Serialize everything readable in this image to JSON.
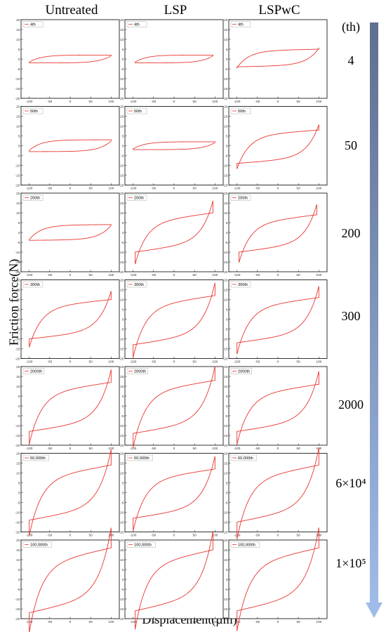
{
  "figure": {
    "columns": [
      "Untreated",
      "LSP",
      "LSPwC"
    ],
    "row_labels": [
      "4",
      "50",
      "200",
      "300",
      "2000",
      "6×10⁴",
      "1×10⁵"
    ],
    "unit_label": "(th)",
    "ylabel": "Friction force(N)",
    "xlabel": "Displacement(µm)",
    "arrow_color": "#9fbbe8",
    "arrow_color_top": "#5f6f8f",
    "curve_color": "#e8352f"
  },
  "chart_data": {
    "type": "line",
    "layout": "grid 7 rows x 3 columns",
    "x_ticks": [
      -100,
      -50,
      0,
      50,
      100
    ],
    "y_ticks": [
      -20,
      -15,
      -10,
      -5,
      0,
      5,
      10,
      15,
      20
    ],
    "xlim": [
      -120,
      120
    ],
    "ylim": [
      -20,
      20
    ],
    "rows": [
      {
        "cycle_label": "4th",
        "panels": [
          {
            "column": "Untreated",
            "legend": "4th",
            "amplitude": 100,
            "f_top": 2,
            "f_bottom": -2,
            "slant": 0
          },
          {
            "column": "LSP",
            "legend": "4th",
            "amplitude": 95,
            "f_top": 2,
            "f_bottom": -2,
            "slant": 0
          },
          {
            "column": "LSPwC",
            "legend": "4th",
            "amplitude": 100,
            "f_top": 5,
            "f_bottom": -4,
            "slant": 1.5
          }
        ]
      },
      {
        "cycle_label": "50th",
        "panels": [
          {
            "column": "Untreated",
            "legend": "50th",
            "amplitude": 100,
            "f_top": 3,
            "f_bottom": -3,
            "slant": 0
          },
          {
            "column": "LSP",
            "legend": "50th",
            "amplitude": 100,
            "f_top": 2,
            "f_bottom": -2,
            "slant": 0
          },
          {
            "column": "LSPwC",
            "legend": "50th",
            "amplitude": 100,
            "f_top": 8,
            "f_bottom": -9,
            "slant": 5
          }
        ]
      },
      {
        "cycle_label": "200th",
        "panels": [
          {
            "column": "Untreated",
            "legend": "200th",
            "amplitude": 100,
            "f_top": 4,
            "f_bottom": -4,
            "slant": 0.5
          },
          {
            "column": "LSP",
            "legend": "200th",
            "amplitude": 95,
            "f_top": 10,
            "f_bottom": -10,
            "slant": 9
          },
          {
            "column": "LSPwC",
            "legend": "200th",
            "amplitude": 95,
            "f_top": 9,
            "f_bottom": -10,
            "slant": 8
          }
        ]
      },
      {
        "cycle_label": "300th",
        "panels": [
          {
            "column": "Untreated",
            "legend": "300th",
            "amplitude": 100,
            "f_top": 10,
            "f_bottom": -10,
            "slant": 7
          },
          {
            "column": "LSP",
            "legend": "300th",
            "amplitude": 100,
            "f_top": 12,
            "f_bottom": -13,
            "slant": 10
          },
          {
            "column": "LSPwC",
            "legend": "300th",
            "amplitude": 100,
            "f_top": 11,
            "f_bottom": -12,
            "slant": 9
          }
        ]
      },
      {
        "cycle_label": "2000th",
        "panels": [
          {
            "column": "Untreated",
            "legend": "2000th",
            "amplitude": 100,
            "f_top": 12,
            "f_bottom": -13,
            "slant": 10
          },
          {
            "column": "LSP",
            "legend": "2000th",
            "amplitude": 100,
            "f_top": 13,
            "f_bottom": -14,
            "slant": 11
          },
          {
            "column": "LSPwC",
            "legend": "2000th",
            "amplitude": 100,
            "f_top": 11,
            "f_bottom": -13,
            "slant": 10
          }
        ]
      },
      {
        "cycle_label": "60,000th",
        "panels": [
          {
            "column": "Untreated",
            "legend": "60,000th",
            "amplitude": 100,
            "f_top": 14,
            "f_bottom": -14,
            "slant": 12
          },
          {
            "column": "LSP",
            "legend": "60,000th",
            "amplitude": 100,
            "f_top": 12,
            "f_bottom": -13,
            "slant": 10
          },
          {
            "column": "LSPwC",
            "legend": "60,000th",
            "amplitude": 100,
            "f_top": 14,
            "f_bottom": -15,
            "slant": 13
          }
        ]
      },
      {
        "cycle_label": "100,000th",
        "panels": [
          {
            "column": "Untreated",
            "legend": "100,000th",
            "amplitude": 100,
            "f_top": 16,
            "f_bottom": -17,
            "slant": 15
          },
          {
            "column": "LSP",
            "legend": "100,000th",
            "amplitude": 95,
            "f_top": 15,
            "f_bottom": -16,
            "slant": 14
          },
          {
            "column": "LSPwC",
            "legend": "100,000th",
            "amplitude": 100,
            "f_top": 16,
            "f_bottom": -16,
            "slant": 15
          }
        ]
      }
    ]
  }
}
